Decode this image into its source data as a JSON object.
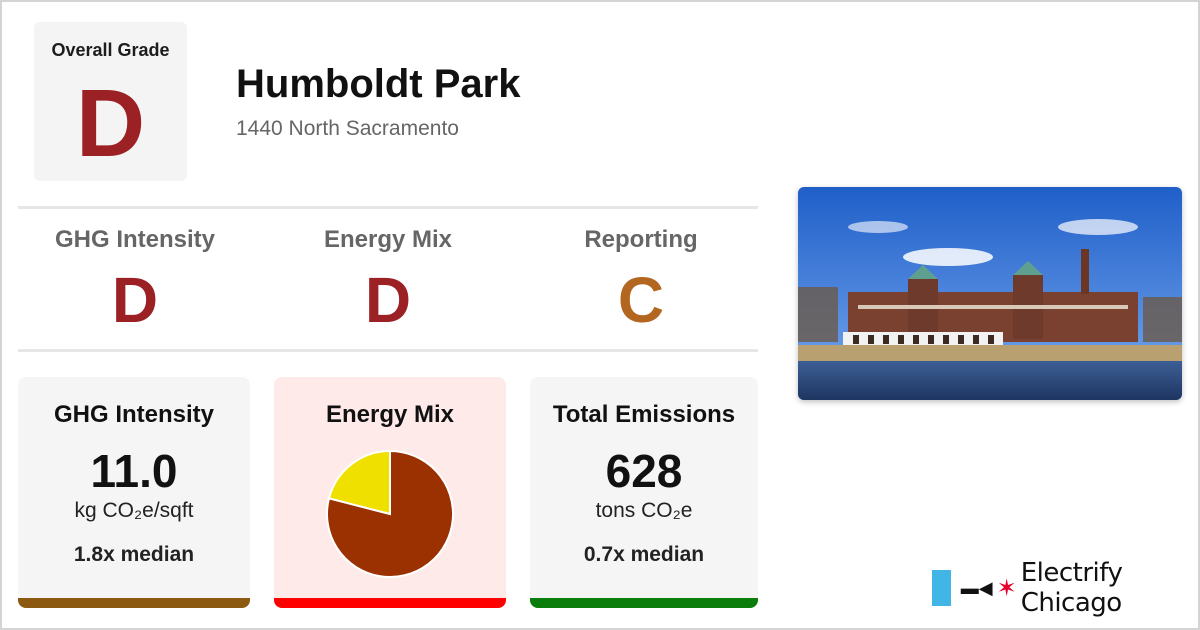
{
  "overall": {
    "label": "Overall Grade",
    "grade": "D",
    "color": "#9c2125"
  },
  "building": {
    "name": "Humboldt Park",
    "address": "1440 North Sacramento"
  },
  "subgrades": [
    {
      "label": "GHG Intensity",
      "grade": "D",
      "color": "#9c2125"
    },
    {
      "label": "Energy Mix",
      "grade": "D",
      "color": "#9c2125"
    },
    {
      "label": "Reporting",
      "grade": "C",
      "color": "#b3661f"
    }
  ],
  "cards": {
    "ghg": {
      "title": "GHG Intensity",
      "value": "11.0",
      "unit": "kg CO₂e/sqft",
      "median": "1.8x median",
      "bar_color": "#8b5a10",
      "bg": "#f5f5f5"
    },
    "mix": {
      "title": "Energy Mix",
      "bar_color": "#ff0000",
      "bg": "#ffeaea"
    },
    "emissions": {
      "title": "Total Emissions",
      "value": "628",
      "unit": "tons CO₂e",
      "median": "0.7x median",
      "bar_color": "#0a7d0a",
      "bg": "#f5f5f5"
    }
  },
  "chart_data": {
    "type": "pie",
    "slices": [
      {
        "value": 79,
        "color": "#9b3100"
      },
      {
        "value": 21,
        "color": "#f0e000"
      }
    ]
  },
  "brand": {
    "name": "Electrify Chicago",
    "flag_color": "#41b6e6",
    "star_color": "#e4002b",
    "icon": "plug-icon"
  }
}
